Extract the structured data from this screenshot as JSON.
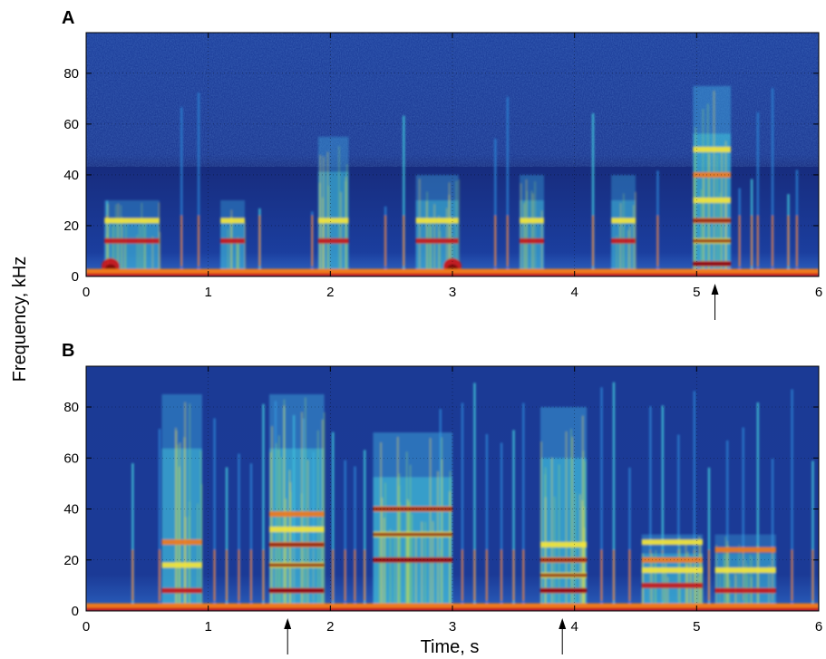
{
  "colors": {
    "background_dark": "#13287a",
    "background_mid": "#1e3f9e",
    "cyan": "#3fc3d8",
    "yellow": "#f4e53a",
    "orange": "#ef7a1e",
    "red": "#c8171b",
    "darkred": "#7b0a0f"
  },
  "chart_data": [
    {
      "type": "heatmap",
      "panel_label": "A",
      "xlabel": "",
      "ylabel": "",
      "xlim": [
        0,
        6
      ],
      "ylim": [
        0,
        96
      ],
      "x_ticks": [
        "0",
        "1",
        "2",
        "3",
        "4",
        "5",
        "6"
      ],
      "y_ticks": [
        "0",
        "20",
        "40",
        "60",
        "80"
      ],
      "grid": true,
      "colormap": "jet",
      "arrows_at_time": [
        5.15
      ],
      "segments": [
        {
          "start": 0.15,
          "end": 0.6,
          "fmax": 30,
          "bands": [
            14,
            22
          ],
          "intensity": 0.75
        },
        {
          "start": 1.1,
          "end": 1.3,
          "fmax": 30,
          "bands": [
            14,
            22
          ],
          "intensity": 0.75
        },
        {
          "start": 1.9,
          "end": 2.15,
          "fmax": 55,
          "bands": [
            14,
            22
          ],
          "intensity": 0.8
        },
        {
          "start": 2.7,
          "end": 3.05,
          "fmax": 40,
          "bands": [
            14,
            22
          ],
          "intensity": 0.78
        },
        {
          "start": 3.55,
          "end": 3.75,
          "fmax": 40,
          "bands": [
            14,
            22
          ],
          "intensity": 0.75
        },
        {
          "start": 4.3,
          "end": 4.5,
          "fmax": 40,
          "bands": [
            14,
            22
          ],
          "intensity": 0.75
        },
        {
          "start": 4.97,
          "end": 5.28,
          "fmax": 75,
          "bands": [
            5,
            14,
            22,
            30,
            40,
            50
          ],
          "intensity": 0.95
        }
      ],
      "clicks": [
        0.17,
        0.78,
        0.92,
        1.42,
        1.85,
        2.45,
        2.6,
        3.35,
        3.45,
        4.15,
        4.68,
        5.35,
        5.45,
        5.5,
        5.62,
        5.75,
        5.82
      ],
      "low_bursts": [
        0.2,
        3.0
      ]
    },
    {
      "type": "heatmap",
      "panel_label": "B",
      "xlabel": "Time, s",
      "ylabel": "Frequency, kHz",
      "xlim": [
        0,
        6
      ],
      "ylim": [
        0,
        96
      ],
      "x_ticks": [
        "0",
        "1",
        "2",
        "3",
        "4",
        "5",
        "6"
      ],
      "y_ticks": [
        "0",
        "20",
        "40",
        "60",
        "80"
      ],
      "grid": true,
      "colormap": "jet",
      "arrows_at_time": [
        1.65,
        3.9
      ],
      "segments": [
        {
          "start": 0.62,
          "end": 0.95,
          "fmax": 85,
          "bands": [
            8,
            18,
            27
          ],
          "intensity": 0.9
        },
        {
          "start": 1.5,
          "end": 1.95,
          "fmax": 85,
          "bands": [
            8,
            18,
            26,
            32,
            38
          ],
          "intensity": 0.95
        },
        {
          "start": 2.35,
          "end": 3.0,
          "fmax": 70,
          "bands": [
            20,
            30,
            40
          ],
          "intensity": 1.0
        },
        {
          "start": 3.72,
          "end": 4.1,
          "fmax": 80,
          "bands": [
            8,
            14,
            20,
            26
          ],
          "intensity": 0.95
        },
        {
          "start": 4.55,
          "end": 5.05,
          "fmax": 30,
          "bands": [
            10,
            16,
            20,
            27
          ],
          "intensity": 0.85
        },
        {
          "start": 5.15,
          "end": 5.65,
          "fmax": 30,
          "bands": [
            8,
            16,
            24
          ],
          "intensity": 0.7
        }
      ],
      "clicks": [
        0.38,
        0.6,
        1.05,
        1.15,
        1.25,
        1.35,
        1.45,
        1.55,
        1.62,
        1.7,
        1.78,
        1.86,
        2.02,
        2.12,
        2.2,
        2.28,
        2.9,
        3.08,
        3.18,
        3.28,
        3.4,
        3.5,
        3.58,
        4.22,
        4.32,
        4.45,
        4.62,
        4.72,
        4.85,
        4.98,
        5.1,
        5.25,
        5.38,
        5.5,
        5.62,
        5.78,
        5.95
      ],
      "low_bursts": []
    }
  ]
}
